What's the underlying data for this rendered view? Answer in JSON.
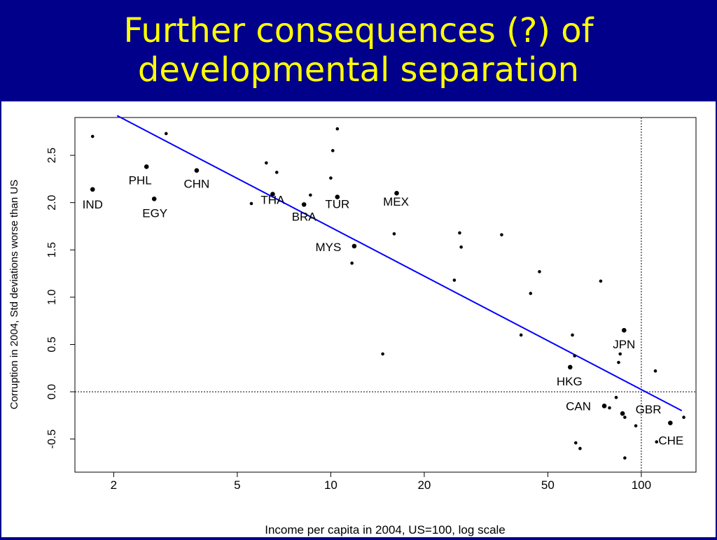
{
  "slide": {
    "title": "Further consequences (?) of developmental separation"
  },
  "colors": {
    "background": "#00008b",
    "title": "#ffff00",
    "regression_line": "#0000ff",
    "points": "#000000"
  },
  "chart_data": {
    "type": "scatter",
    "xlabel": "Income per capita in 2004, US=100, log scale",
    "ylabel": "Corruption in 2004, Std deviations worse than US",
    "x_scale": "log",
    "xlim": [
      1.5,
      150
    ],
    "ylim": [
      -0.85,
      2.9
    ],
    "x_ticks": [
      2,
      5,
      10,
      20,
      50,
      100
    ],
    "x_tick_labels": [
      "2",
      "5",
      "10",
      "20",
      "50",
      "100"
    ],
    "y_ticks": [
      -0.5,
      0.0,
      0.5,
      1.0,
      1.5,
      2.0,
      2.5
    ],
    "y_tick_labels": [
      "-0.5",
      "0.0",
      "0.5",
      "1.0",
      "1.5",
      "2.0",
      "2.5"
    ],
    "reference_lines": {
      "x": 100,
      "y": 0
    },
    "regression_line": {
      "from": [
        2.05,
        2.92
      ],
      "to": [
        135,
        -0.2
      ]
    },
    "labeled_points": [
      {
        "label": "IND",
        "x": 1.71,
        "y": 2.14
      },
      {
        "label": "PHL",
        "x": 2.55,
        "y": 2.38
      },
      {
        "label": "EGY",
        "x": 2.7,
        "y": 2.04
      },
      {
        "label": "CHN",
        "x": 3.7,
        "y": 2.34
      },
      {
        "label": "THA",
        "x": 6.5,
        "y": 2.09
      },
      {
        "label": "BRA",
        "x": 8.2,
        "y": 1.98
      },
      {
        "label": "TUR",
        "x": 10.5,
        "y": 2.06
      },
      {
        "label": "MEX",
        "x": 16.3,
        "y": 2.1
      },
      {
        "label": "MYS",
        "x": 11.9,
        "y": 1.54
      },
      {
        "label": "JPN",
        "x": 88,
        "y": 0.65
      },
      {
        "label": "HKG",
        "x": 59,
        "y": 0.26
      },
      {
        "label": "CAN",
        "x": 76,
        "y": -0.15
      },
      {
        "label": "GBR",
        "x": 87,
        "y": -0.23
      },
      {
        "label": "CHE",
        "x": 124,
        "y": -0.33
      }
    ],
    "unlabeled_points": [
      {
        "x": 1.71,
        "y": 2.7
      },
      {
        "x": 2.95,
        "y": 2.73
      },
      {
        "x": 5.55,
        "y": 1.99
      },
      {
        "x": 6.2,
        "y": 2.42
      },
      {
        "x": 6.7,
        "y": 2.32
      },
      {
        "x": 8.6,
        "y": 2.08
      },
      {
        "x": 10.0,
        "y": 2.26
      },
      {
        "x": 10.15,
        "y": 2.55
      },
      {
        "x": 10.5,
        "y": 2.78
      },
      {
        "x": 11.7,
        "y": 1.36
      },
      {
        "x": 14.7,
        "y": 0.4
      },
      {
        "x": 16.0,
        "y": 1.67
      },
      {
        "x": 25.0,
        "y": 1.18
      },
      {
        "x": 26.0,
        "y": 1.68
      },
      {
        "x": 26.3,
        "y": 1.53
      },
      {
        "x": 35.5,
        "y": 1.66
      },
      {
        "x": 41.0,
        "y": 0.6
      },
      {
        "x": 44.0,
        "y": 1.04
      },
      {
        "x": 47.0,
        "y": 1.27
      },
      {
        "x": 60.0,
        "y": 0.6
      },
      {
        "x": 61.0,
        "y": 0.38
      },
      {
        "x": 61.5,
        "y": -0.54
      },
      {
        "x": 63.5,
        "y": -0.6
      },
      {
        "x": 74.0,
        "y": 1.17
      },
      {
        "x": 79.0,
        "y": -0.17
      },
      {
        "x": 83.0,
        "y": -0.06
      },
      {
        "x": 84.5,
        "y": 0.31
      },
      {
        "x": 85.5,
        "y": 0.4
      },
      {
        "x": 88.5,
        "y": -0.27
      },
      {
        "x": 88.5,
        "y": -0.7
      },
      {
        "x": 96.0,
        "y": -0.36
      },
      {
        "x": 111.0,
        "y": 0.22
      },
      {
        "x": 112.0,
        "y": -0.53
      },
      {
        "x": 137.0,
        "y": -0.27
      }
    ]
  }
}
